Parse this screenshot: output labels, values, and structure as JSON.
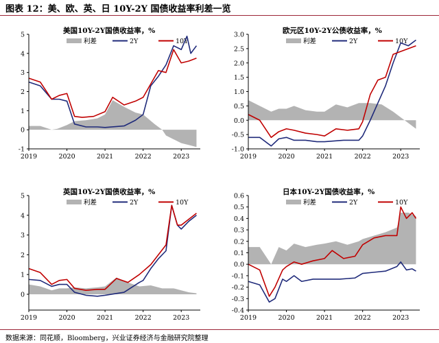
{
  "figure": {
    "title": "图表 12：美、欧、英、日 10Y-2Y 国债收益率利差一览",
    "source": "数据来源：同花顺，Bloomberg，兴业证券经济与金融研究院整理"
  },
  "colors": {
    "spread": "#b3b3b3",
    "y2": "#1f2a7a",
    "y10": "#c00000",
    "rule": "#9b2335"
  },
  "chart_data": [
    {
      "type": "line",
      "title": "美国10Y-2Y国债收益率，%",
      "legend": [
        "利差",
        "2Y",
        "10Y"
      ],
      "legend_placement": "top",
      "x_ticks": [
        "2019",
        "2020",
        "2021",
        "2022",
        "2023"
      ],
      "y_ticks": [
        "-1",
        "0",
        "1",
        "2",
        "3",
        "4",
        "5"
      ],
      "ylim": [
        -1,
        5
      ],
      "xlim": [
        2019.0,
        2023.5
      ],
      "grid": false,
      "series": [
        {
          "name": "利差",
          "style": "area",
          "x": [
            2019.0,
            2019.3,
            2019.6,
            2019.75,
            2020.0,
            2020.2,
            2020.5,
            2020.8,
            2021.0,
            2021.2,
            2021.5,
            2021.8,
            2022.0,
            2022.3,
            2022.5,
            2022.6,
            2022.8,
            2023.0,
            2023.2,
            2023.4
          ],
          "values": [
            0.2,
            0.2,
            0.0,
            0.05,
            0.25,
            0.45,
            0.5,
            0.6,
            0.8,
            1.55,
            1.2,
            0.9,
            0.8,
            0.3,
            0.0,
            -0.3,
            -0.5,
            -0.7,
            -0.8,
            -0.9
          ]
        },
        {
          "name": "2Y",
          "style": "line",
          "x": [
            2019.0,
            2019.3,
            2019.6,
            2019.8,
            2020.0,
            2020.2,
            2020.5,
            2020.8,
            2021.0,
            2021.5,
            2021.8,
            2022.0,
            2022.2,
            2022.4,
            2022.6,
            2022.8,
            2023.0,
            2023.15,
            2023.25,
            2023.4
          ],
          "values": [
            2.5,
            2.3,
            1.6,
            1.6,
            1.5,
            0.3,
            0.15,
            0.15,
            0.12,
            0.2,
            0.5,
            0.8,
            2.3,
            2.8,
            3.4,
            4.4,
            4.2,
            4.9,
            4.0,
            4.4
          ]
        },
        {
          "name": "10Y",
          "style": "line",
          "x": [
            2019.0,
            2019.3,
            2019.6,
            2019.8,
            2020.0,
            2020.2,
            2020.4,
            2020.7,
            2021.0,
            2021.2,
            2021.5,
            2021.8,
            2022.0,
            2022.2,
            2022.4,
            2022.6,
            2022.8,
            2023.0,
            2023.2,
            2023.4
          ],
          "values": [
            2.7,
            2.5,
            1.6,
            1.8,
            1.9,
            0.7,
            0.65,
            0.7,
            0.95,
            1.7,
            1.3,
            1.5,
            1.7,
            2.4,
            3.1,
            3.0,
            4.2,
            3.5,
            3.6,
            3.75
          ]
        }
      ]
    },
    {
      "type": "line",
      "title": "欧元区10Y-2Y公债收益率，%",
      "legend": [
        "利差",
        "2Y",
        "10Y"
      ],
      "legend_placement": "top",
      "x_ticks": [
        "2019",
        "2020",
        "2021",
        "2022",
        "2023"
      ],
      "y_ticks": [
        "-1.0",
        "-0.5",
        "0.0",
        "0.5",
        "1.0",
        "1.5",
        "2.0",
        "2.5",
        "3.0"
      ],
      "ylim": [
        -1.0,
        3.0
      ],
      "xlim": [
        2019.0,
        2023.5
      ],
      "grid": false,
      "series": [
        {
          "name": "利差",
          "style": "area",
          "x": [
            2019.0,
            2019.3,
            2019.6,
            2019.8,
            2020.0,
            2020.2,
            2020.5,
            2020.8,
            2021.0,
            2021.3,
            2021.6,
            2021.9,
            2022.2,
            2022.5,
            2022.8,
            2023.0,
            2023.2,
            2023.4
          ],
          "values": [
            0.7,
            0.5,
            0.3,
            0.4,
            0.4,
            0.5,
            0.35,
            0.3,
            0.3,
            0.55,
            0.45,
            0.6,
            0.6,
            0.55,
            0.3,
            0.1,
            -0.1,
            -0.3
          ]
        },
        {
          "name": "2Y",
          "style": "line",
          "x": [
            2019.0,
            2019.3,
            2019.6,
            2019.8,
            2020.0,
            2020.2,
            2020.5,
            2020.8,
            2021.0,
            2021.5,
            2021.9,
            2022.0,
            2022.2,
            2022.4,
            2022.6,
            2022.8,
            2023.0,
            2023.2,
            2023.4
          ],
          "values": [
            -0.6,
            -0.6,
            -0.9,
            -0.65,
            -0.6,
            -0.7,
            -0.7,
            -0.75,
            -0.75,
            -0.7,
            -0.7,
            -0.55,
            0.0,
            0.6,
            1.2,
            2.0,
            2.7,
            2.6,
            2.8
          ]
        },
        {
          "name": "10Y",
          "style": "line",
          "x": [
            2019.0,
            2019.3,
            2019.6,
            2019.8,
            2020.0,
            2020.2,
            2020.5,
            2020.8,
            2021.0,
            2021.3,
            2021.6,
            2021.9,
            2022.0,
            2022.2,
            2022.4,
            2022.6,
            2022.8,
            2023.0,
            2023.2,
            2023.4
          ],
          "values": [
            0.2,
            0.0,
            -0.6,
            -0.4,
            -0.3,
            -0.35,
            -0.45,
            -0.5,
            -0.55,
            -0.3,
            -0.35,
            -0.3,
            -0.05,
            0.9,
            1.4,
            1.5,
            2.3,
            2.4,
            2.5,
            2.6
          ]
        }
      ]
    },
    {
      "type": "line",
      "title": "英国10Y-2Y国债收益率，%",
      "legend": [
        "利差",
        "2Y",
        "10Y"
      ],
      "legend_placement": "top",
      "x_ticks": [
        "2019",
        "2020",
        "2021",
        "2022",
        "2023"
      ],
      "y_ticks": [
        "0",
        "1",
        "2",
        "3",
        "4",
        "5"
      ],
      "ylim": [
        -0.8,
        5
      ],
      "xlim": [
        2019.0,
        2023.5
      ],
      "grid": false,
      "series": [
        {
          "name": "利差",
          "style": "area",
          "x": [
            2019.0,
            2019.3,
            2019.6,
            2019.8,
            2020.0,
            2020.2,
            2020.5,
            2020.8,
            2021.0,
            2021.3,
            2021.6,
            2021.9,
            2022.2,
            2022.5,
            2022.8,
            2023.0,
            2023.2,
            2023.4
          ],
          "values": [
            0.5,
            0.4,
            0.2,
            0.3,
            0.3,
            0.35,
            0.3,
            0.35,
            0.4,
            0.85,
            0.6,
            0.4,
            0.45,
            0.3,
            0.3,
            0.2,
            0.1,
            0.05
          ]
        },
        {
          "name": "2Y",
          "style": "line",
          "x": [
            2019.0,
            2019.3,
            2019.6,
            2019.8,
            2020.0,
            2020.2,
            2020.5,
            2020.8,
            2021.0,
            2021.5,
            2021.9,
            2022.0,
            2022.2,
            2022.4,
            2022.6,
            2022.75,
            2022.9,
            2023.0,
            2023.2,
            2023.4
          ],
          "values": [
            0.75,
            0.7,
            0.4,
            0.5,
            0.5,
            0.1,
            -0.05,
            -0.1,
            -0.05,
            0.1,
            0.6,
            0.7,
            1.3,
            1.8,
            2.2,
            4.5,
            3.5,
            3.3,
            3.7,
            4.0
          ]
        },
        {
          "name": "10Y",
          "style": "line",
          "x": [
            2019.0,
            2019.3,
            2019.6,
            2019.8,
            2020.0,
            2020.2,
            2020.5,
            2020.8,
            2021.0,
            2021.3,
            2021.6,
            2021.9,
            2022.2,
            2022.4,
            2022.6,
            2022.75,
            2022.9,
            2023.0,
            2023.2,
            2023.4
          ],
          "values": [
            1.3,
            1.1,
            0.5,
            0.7,
            0.75,
            0.3,
            0.2,
            0.25,
            0.25,
            0.8,
            0.6,
            1.0,
            1.5,
            2.0,
            2.5,
            4.5,
            3.5,
            3.5,
            3.8,
            4.1
          ]
        }
      ]
    },
    {
      "type": "line",
      "title": "日本10Y-2Y国债收益率，%",
      "legend": [
        "利差",
        "2Y",
        "10Y"
      ],
      "legend_placement": "top",
      "x_ticks": [
        "2019",
        "2020",
        "2021",
        "2022",
        "2023"
      ],
      "y_ticks": [
        "-0.4",
        "-0.3",
        "-0.2",
        "-0.1",
        "0.0",
        "0.1",
        "0.2",
        "0.3",
        "0.4",
        "0.5",
        "0.6"
      ],
      "ylim": [
        -0.4,
        0.6
      ],
      "xlim": [
        2019.0,
        2023.5
      ],
      "grid": false,
      "series": [
        {
          "name": "利差",
          "style": "area",
          "x": [
            2019.0,
            2019.3,
            2019.6,
            2019.8,
            2020.0,
            2020.2,
            2020.5,
            2020.8,
            2021.0,
            2021.3,
            2021.6,
            2021.9,
            2022.0,
            2022.3,
            2022.6,
            2022.9,
            2023.0,
            2023.2,
            2023.4
          ],
          "values": [
            0.15,
            0.15,
            0.0,
            0.15,
            0.12,
            0.18,
            0.15,
            0.17,
            0.18,
            0.2,
            0.17,
            0.2,
            0.22,
            0.25,
            0.28,
            0.32,
            0.45,
            0.45,
            0.42
          ]
        },
        {
          "name": "2Y",
          "style": "line",
          "x": [
            2019.0,
            2019.3,
            2019.55,
            2019.7,
            2019.9,
            2020.0,
            2020.2,
            2020.4,
            2020.7,
            2021.0,
            2021.4,
            2021.8,
            2022.0,
            2022.3,
            2022.6,
            2022.9,
            2023.0,
            2023.15,
            2023.3,
            2023.4
          ],
          "values": [
            -0.15,
            -0.18,
            -0.33,
            -0.3,
            -0.13,
            -0.15,
            -0.1,
            -0.15,
            -0.13,
            -0.13,
            -0.13,
            -0.12,
            -0.08,
            -0.07,
            -0.06,
            -0.02,
            0.02,
            -0.05,
            -0.04,
            -0.06
          ]
        },
        {
          "name": "10Y",
          "style": "line",
          "x": [
            2019.0,
            2019.3,
            2019.55,
            2019.7,
            2019.9,
            2020.0,
            2020.2,
            2020.4,
            2020.7,
            2021.0,
            2021.2,
            2021.5,
            2021.8,
            2022.0,
            2022.3,
            2022.6,
            2022.9,
            2023.0,
            2023.15,
            2023.3,
            2023.4
          ],
          "values": [
            0.0,
            -0.05,
            -0.28,
            -0.2,
            -0.05,
            -0.02,
            0.02,
            0.0,
            0.03,
            0.05,
            0.12,
            0.05,
            0.07,
            0.17,
            0.23,
            0.25,
            0.25,
            0.5,
            0.4,
            0.45,
            0.4
          ]
        }
      ]
    }
  ]
}
